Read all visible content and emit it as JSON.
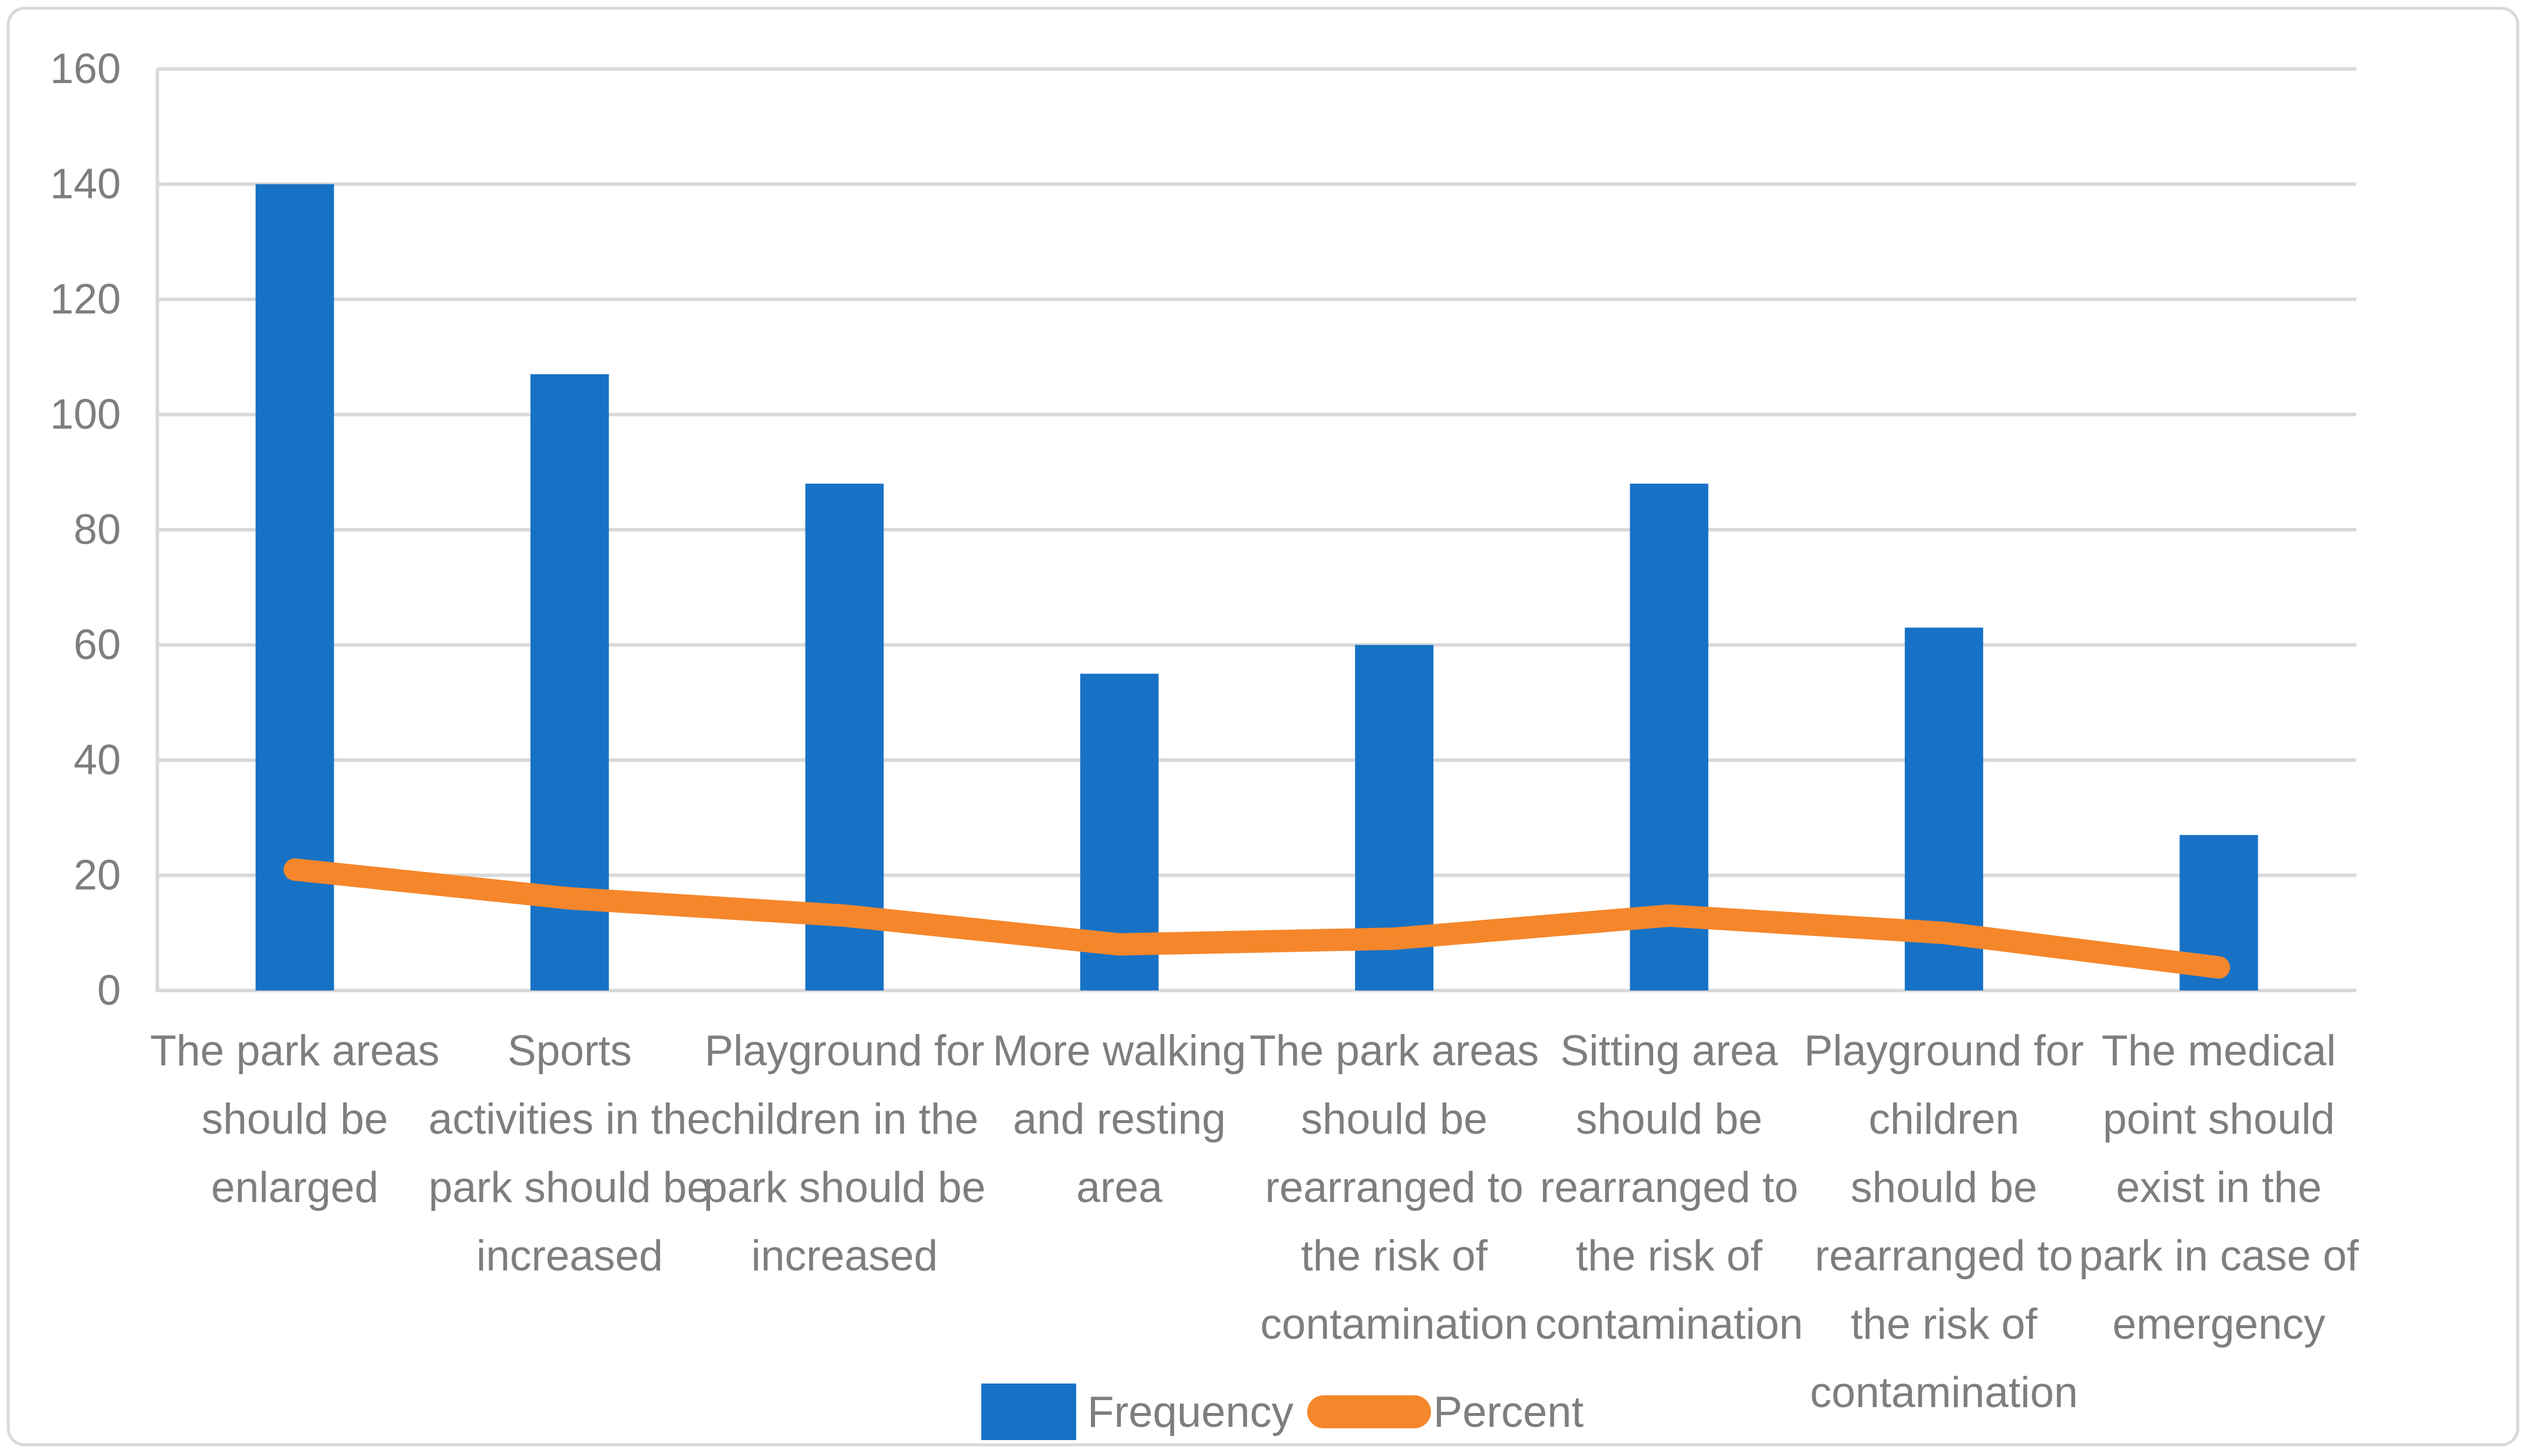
{
  "chart_data": {
    "type": "bar+line",
    "title": "",
    "xlabel": "",
    "ylabel": "",
    "categories": [
      "The park areas should be enlarged",
      "Sports activities in the park should be increased",
      "Playground for children in the park should be increased",
      "More walking and resting area",
      "The park areas should be rearranged to the risk of contamination",
      "Sitting area should be rearranged to the risk of contamination",
      "Playground for children should be rearranged to the risk of contamination",
      "The medical point should exist in the park in case of emergency"
    ],
    "category_line_breaks": [
      [
        "The park areas",
        "should be",
        "enlarged"
      ],
      [
        "Sports",
        "activities in the",
        "park should be",
        "increased"
      ],
      [
        "Playground for",
        "children in the",
        "park should be",
        "increased"
      ],
      [
        "More walking",
        "and resting",
        "area"
      ],
      [
        "The park areas",
        "should be",
        "rearranged to",
        "the risk of",
        "contamination"
      ],
      [
        "Sitting area",
        "should be",
        "rearranged to",
        "the risk of",
        "contamination"
      ],
      [
        "Playground for",
        "children",
        "should be",
        "rearranged to",
        "the risk of",
        "contamination"
      ],
      [
        "The medical",
        "point should",
        "exist in the",
        "park in case of",
        "emergency"
      ]
    ],
    "series": [
      {
        "name": "Frequency",
        "type": "bar",
        "color": "#1772C6",
        "values": [
          140,
          107,
          88,
          55,
          60,
          88,
          63,
          27
        ]
      },
      {
        "name": "Percent",
        "type": "line",
        "color": "#F6862B",
        "values": [
          21,
          16,
          13,
          8,
          9,
          13,
          10,
          4
        ]
      }
    ],
    "ylim": [
      0,
      160
    ],
    "yticks": [
      0,
      20,
      40,
      60,
      80,
      100,
      120,
      140,
      160
    ],
    "grid": true,
    "legend_position": "bottom"
  },
  "colors": {
    "bar": "#1772C6",
    "line": "#F6862B",
    "grid": "#D9D9D9",
    "axis": "#D9D9D9",
    "border": "#D9D9D9",
    "text": "#7E7E7E",
    "background": "#FFFFFF"
  }
}
